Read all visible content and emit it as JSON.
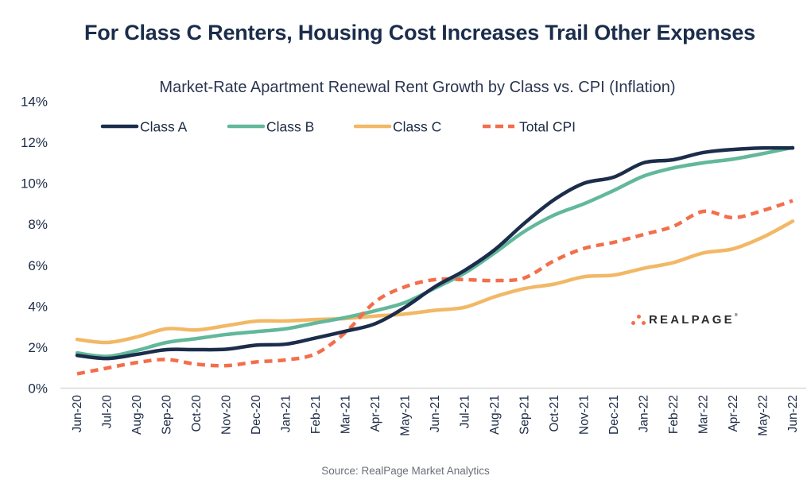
{
  "chart_data": {
    "type": "line",
    "title": "For Class C Renters, Housing Cost Increases Trail Other Expenses",
    "subtitle": "Market-Rate Apartment Renewal Rent Growth by Class vs. CPI (Inflation)",
    "xlabel": "",
    "ylabel": "",
    "ylim": [
      0,
      14
    ],
    "yticks": [
      0,
      2,
      4,
      6,
      8,
      10,
      12,
      14
    ],
    "ytick_labels": [
      "0%",
      "2%",
      "4%",
      "6%",
      "8%",
      "10%",
      "12%",
      "14%"
    ],
    "grid": false,
    "legend_position": "top",
    "categories": [
      "Jun-20",
      "Jul-20",
      "Aug-20",
      "Sep-20",
      "Oct-20",
      "Nov-20",
      "Dec-20",
      "Jan-21",
      "Feb-21",
      "Mar-21",
      "Apr-21",
      "May-21",
      "Jun-21",
      "Jul-21",
      "Aug-21",
      "Sep-21",
      "Oct-21",
      "Nov-21",
      "Dec-21",
      "Jan-22",
      "Feb-22",
      "Mar-22",
      "Apr-22",
      "May-22",
      "Jun-22"
    ],
    "series": [
      {
        "name": "Class A",
        "color": "#1b2d4b",
        "style": "solid",
        "values": [
          1.6,
          1.45,
          1.65,
          1.88,
          1.88,
          1.9,
          2.1,
          2.15,
          2.45,
          2.78,
          3.15,
          3.95,
          4.95,
          5.75,
          6.75,
          8.05,
          9.2,
          10.0,
          10.3,
          11.0,
          11.15,
          11.5,
          11.65,
          11.72,
          11.72
        ]
      },
      {
        "name": "Class B",
        "color": "#62b89a",
        "style": "solid",
        "values": [
          1.72,
          1.55,
          1.84,
          2.23,
          2.42,
          2.62,
          2.76,
          2.9,
          3.18,
          3.45,
          3.78,
          4.18,
          4.88,
          5.62,
          6.6,
          7.65,
          8.45,
          9.0,
          9.65,
          10.35,
          10.75,
          11.0,
          11.18,
          11.45,
          11.75
        ]
      },
      {
        "name": "Class C",
        "color": "#f2b866",
        "style": "solid",
        "values": [
          2.38,
          2.23,
          2.5,
          2.9,
          2.84,
          3.05,
          3.27,
          3.28,
          3.35,
          3.4,
          3.52,
          3.62,
          3.8,
          3.95,
          4.46,
          4.86,
          5.08,
          5.44,
          5.52,
          5.85,
          6.13,
          6.6,
          6.8,
          7.37,
          8.15
        ]
      },
      {
        "name": "Total CPI",
        "color": "#f36e4b",
        "style": "dashed",
        "values": [
          0.7,
          0.98,
          1.25,
          1.4,
          1.17,
          1.1,
          1.28,
          1.38,
          1.68,
          2.72,
          4.22,
          4.95,
          5.3,
          5.3,
          5.25,
          5.38,
          6.22,
          6.82,
          7.12,
          7.5,
          7.9,
          8.63,
          8.32,
          8.67,
          9.15
        ]
      }
    ],
    "source": "Source: RealPage Market Analytics"
  },
  "logo": {
    "text": "REALPAGE",
    "tm": "®",
    "dot_color": "#f36e4b"
  },
  "colors": {
    "title": "#1b2d4b",
    "axis_text": "#1c2b45",
    "axis_line": "#d9d9d9"
  }
}
